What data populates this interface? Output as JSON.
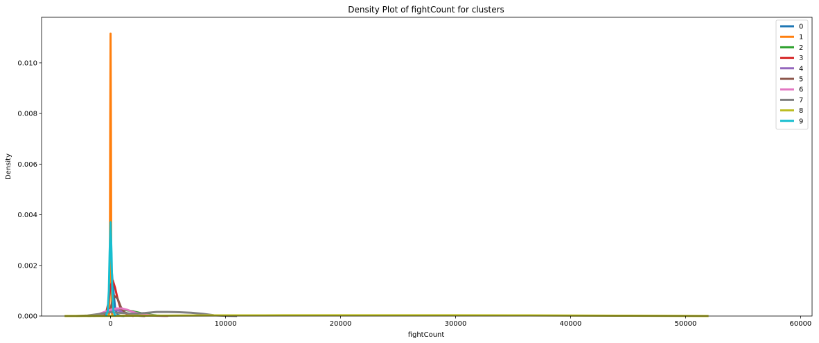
{
  "chart_data": {
    "type": "line",
    "title": "Density Plot of fightCount for clusters",
    "xlabel": "fightCount",
    "ylabel": "Density",
    "xlim": [
      -6000,
      61000
    ],
    "ylim": [
      0,
      0.0118
    ],
    "x_ticks": [
      0,
      10000,
      20000,
      30000,
      40000,
      50000,
      60000
    ],
    "x_tick_labels": [
      "0",
      "10000",
      "20000",
      "30000",
      "40000",
      "50000",
      "60000"
    ],
    "y_ticks": [
      0,
      0.002,
      0.004,
      0.006,
      0.008,
      0.01
    ],
    "y_tick_labels": [
      "0.000",
      "0.002",
      "0.004",
      "0.006",
      "0.008",
      "0.010"
    ],
    "grid": false,
    "legend_position": "top-right",
    "series": [
      {
        "name": "0",
        "color": "#1f77b4",
        "x": [
          -600,
          -400,
          -200,
          0,
          100,
          200,
          400,
          600,
          900,
          1200
        ],
        "y": [
          0,
          5e-05,
          0.0003,
          0.0012,
          0.0018,
          0.0012,
          0.0003,
          5e-05,
          1e-05,
          0
        ]
      },
      {
        "name": "1",
        "color": "#ff7f0e",
        "x": [
          -200,
          -120,
          -60,
          -30,
          0,
          30,
          60,
          120,
          200
        ],
        "y": [
          0,
          0.0001,
          0.002,
          0.0075,
          0.01115,
          0.0075,
          0.002,
          0.0001,
          0
        ]
      },
      {
        "name": "2",
        "color": "#2ca02c",
        "x": [
          -2000,
          -1000,
          -500,
          0,
          500,
          1000,
          2000,
          3000,
          4000,
          5000
        ],
        "y": [
          0,
          3e-05,
          0.0001,
          0.00022,
          0.00027,
          0.00026,
          0.00018,
          8e-05,
          2e-05,
          0
        ]
      },
      {
        "name": "3",
        "color": "#d62728",
        "x": [
          -800,
          -400,
          -200,
          0,
          200,
          400,
          600,
          800,
          1000,
          1500,
          2000
        ],
        "y": [
          0,
          0.0001,
          0.0005,
          0.0012,
          0.0014,
          0.0011,
          0.0007,
          0.0004,
          0.0002,
          5e-05,
          0
        ]
      },
      {
        "name": "4",
        "color": "#9467bd",
        "x": [
          -1500,
          -1000,
          -500,
          0,
          500,
          1000,
          1500,
          2000,
          2500,
          3000
        ],
        "y": [
          0,
          3e-05,
          0.00012,
          0.00022,
          0.00024,
          0.00018,
          0.0001,
          5e-05,
          2e-05,
          0
        ]
      },
      {
        "name": "5",
        "color": "#8c564b",
        "x": [
          -500,
          0,
          300,
          600,
          900,
          1200,
          1600,
          2000,
          2500,
          3000
        ],
        "y": [
          0,
          0.0003,
          0.0008,
          0.0007,
          0.00035,
          0.00015,
          8e-05,
          4e-05,
          1e-05,
          0
        ]
      },
      {
        "name": "6",
        "color": "#e377c2",
        "x": [
          -2000,
          -1000,
          0,
          500,
          1000,
          1500,
          2000,
          3000,
          4000,
          5000
        ],
        "y": [
          0,
          8e-05,
          0.00025,
          0.0003,
          0.0003,
          0.00024,
          0.00015,
          5e-05,
          1e-05,
          0
        ]
      },
      {
        "name": "7",
        "color": "#7f7f7f",
        "x": [
          -3000,
          -2000,
          -1000,
          0,
          1000,
          2000,
          3000,
          4000,
          5000,
          6000,
          7000,
          8000,
          9000,
          10000,
          11000
        ],
        "y": [
          0,
          2e-05,
          8e-05,
          0.00015,
          0.00012,
          9e-05,
          0.00012,
          0.00016,
          0.00016,
          0.00015,
          0.00013,
          9e-05,
          3e-05,
          1e-05,
          0
        ]
      },
      {
        "name": "8",
        "color": "#bcbd22",
        "x": [
          -4000,
          -1000,
          2000,
          5000,
          10000,
          15000,
          20000,
          25000,
          30000,
          35000,
          40000,
          45000,
          50000,
          52000
        ],
        "y": [
          0,
          5e-06,
          1.2e-05,
          1.8e-05,
          2.6e-05,
          3e-05,
          3e-05,
          3e-05,
          3e-05,
          2.8e-05,
          2.2e-05,
          1.2e-05,
          4e-06,
          0
        ]
      },
      {
        "name": "9",
        "color": "#17becf",
        "x": [
          -400,
          -250,
          -150,
          -80,
          0,
          80,
          150,
          250,
          400
        ],
        "y": [
          0,
          0.0002,
          0.001,
          0.0025,
          0.0037,
          0.0025,
          0.001,
          0.0002,
          0
        ]
      }
    ]
  }
}
